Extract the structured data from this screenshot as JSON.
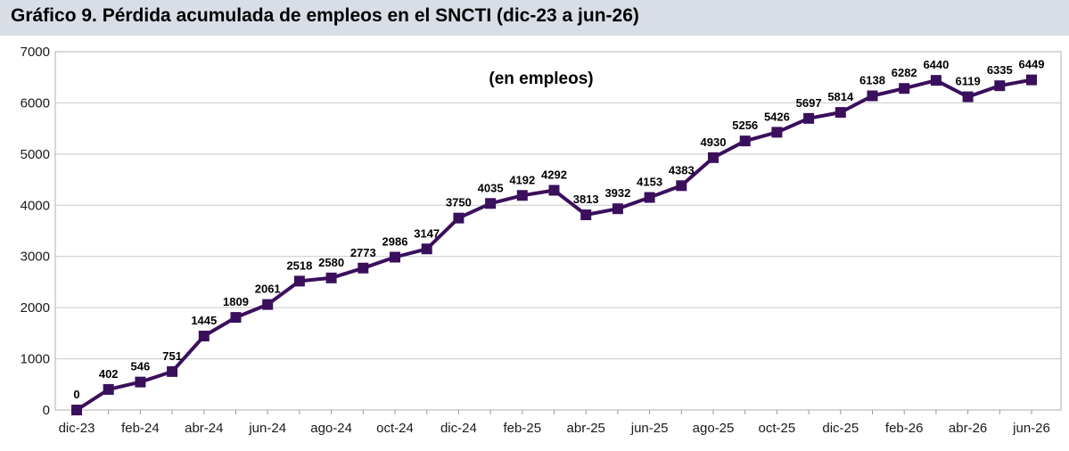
{
  "header": {
    "title": "Gráfico 9. Pérdida acumulada de empleos en el SNCTI (dic-23 a jun-26)"
  },
  "colors": {
    "title_background": "#d9dde6",
    "series": "#3a0f5c",
    "grid": "#c8c8c8"
  },
  "chart_data": {
    "type": "line",
    "title": "Gráfico 9. Pérdida acumulada de empleos en el SNCTI (dic-23 a jun-26)",
    "subtitle": "(en empleos)",
    "x": [
      "dic-23",
      "ene-24",
      "feb-24",
      "mar-24",
      "abr-24",
      "may-24",
      "jun-24",
      "jul-24",
      "ago-24",
      "sep-24",
      "oct-24",
      "nov-24",
      "dic-24",
      "ene-25",
      "feb-25",
      "mar-25",
      "abr-25",
      "may-25",
      "jun-25",
      "jul-25",
      "ago-25",
      "sep-25",
      "oct-25",
      "nov-25",
      "dic-25",
      "ene-26",
      "feb-26",
      "mar-26",
      "abr-26",
      "may-26",
      "jun-26"
    ],
    "x_tick_labels": [
      "dic-23",
      "feb-24",
      "abr-24",
      "jun-24",
      "ago-24",
      "oct-24",
      "dic-24",
      "feb-25",
      "abr-25",
      "jun-25",
      "ago-25",
      "oct-25",
      "dic-25",
      "feb-26",
      "abr-26",
      "jun-26"
    ],
    "values": [
      0,
      402,
      546,
      751,
      1445,
      1809,
      2061,
      2518,
      2580,
      2773,
      2986,
      3147,
      3750,
      4035,
      4192,
      4292,
      3813,
      3932,
      4153,
      4383,
      4930,
      5256,
      5426,
      5697,
      5814,
      6138,
      6282,
      6440,
      6119,
      6335,
      6449
    ],
    "ylim": [
      0,
      7000
    ],
    "yticks": [
      0,
      1000,
      2000,
      3000,
      4000,
      5000,
      6000,
      7000
    ],
    "xlabel": "",
    "ylabel": "",
    "grid": true,
    "marker": "square",
    "data_labels": true
  }
}
